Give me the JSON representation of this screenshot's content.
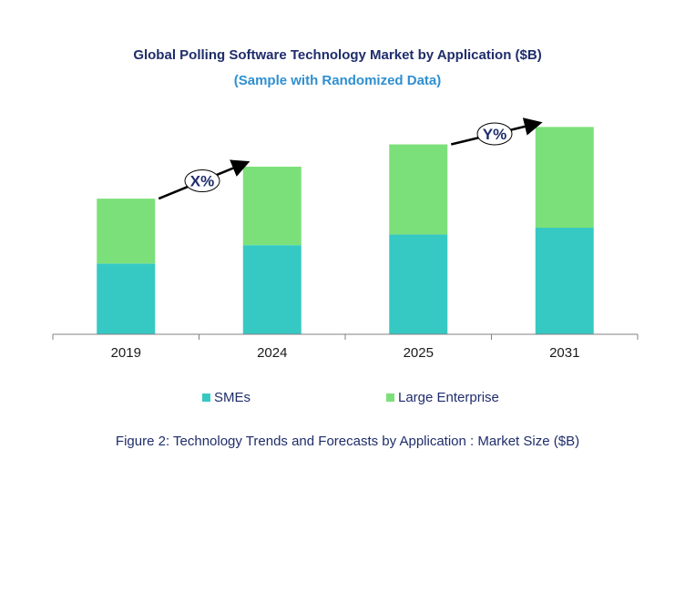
{
  "chart_data": {
    "type": "bar",
    "stacked": true,
    "title": "Global Polling  Software Technology Market by Application ($B)",
    "subtitle": "(Sample with Randomized Data)",
    "categories": [
      "2019",
      "2024",
      "2025",
      "2031"
    ],
    "series": [
      {
        "name": "SMEs",
        "color": "#36c9c3",
        "values": [
          73,
          92,
          103,
          110
        ]
      },
      {
        "name": "Large Enterprise",
        "color": "#7ce07a",
        "values": [
          67,
          81,
          93,
          104
        ]
      }
    ],
    "ylim": [
      0,
      220
    ],
    "annotations": [
      {
        "label": "X%",
        "from": "2019",
        "to": "2024"
      },
      {
        "label": "Y%",
        "from": "2025",
        "to": "2031"
      }
    ],
    "legend_position": "bottom",
    "caption": "Figure 2: Technology  Trends  and Forecasts by Application : Market Size ($B)"
  }
}
